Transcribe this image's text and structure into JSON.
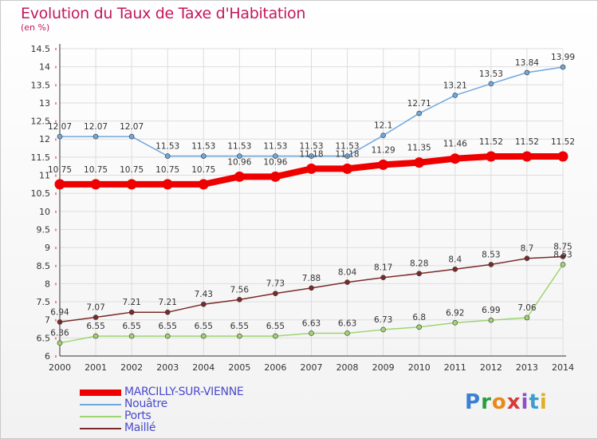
{
  "title": "Evolution du Taux de Taxe d'Habitation",
  "subtitle": "(en %)",
  "logo": "Proxiti",
  "colors": {
    "title": "#c2185b",
    "legend_text": "#4a4acc",
    "grid": "#dddddd"
  },
  "chart_data": {
    "type": "line",
    "title": "Evolution du Taux de Taxe d'Habitation",
    "subtitle": "(en %)",
    "xlabel": "",
    "ylabel": "",
    "ylim": [
      6,
      14.5
    ],
    "yticks": [
      "6",
      "6.5",
      "7",
      "7.5",
      "8",
      "8.5",
      "9",
      "9.5",
      "10",
      "10.5",
      "11",
      "11.5",
      "12",
      "12.5",
      "13",
      "13.5",
      "14",
      "14.5"
    ],
    "x": [
      "2000",
      "2001",
      "2002",
      "2003",
      "2004",
      "2005",
      "2006",
      "2007",
      "2008",
      "2009",
      "2010",
      "2011",
      "2012",
      "2013",
      "2014"
    ],
    "grid": true,
    "legend_position": "bottom-left",
    "series": [
      {
        "name": "MARCILLY-SUR-VIENNE",
        "color": "#ee0000",
        "values": [
          10.75,
          10.75,
          10.75,
          10.75,
          10.75,
          10.96,
          10.96,
          11.18,
          11.18,
          11.29,
          11.35,
          11.46,
          11.52,
          11.52,
          11.52
        ],
        "labels": [
          "10.75",
          "10.75",
          "10.75",
          "10.75",
          "10.75",
          "10.96",
          "10.96",
          "11.18",
          "11.18",
          "11.29",
          "11.35",
          "11.46",
          "11.52",
          "11.52",
          "11.52"
        ]
      },
      {
        "name": "Nouâtre",
        "color": "#6fa8dc",
        "values": [
          12.07,
          12.07,
          12.07,
          11.53,
          11.53,
          11.53,
          11.53,
          11.53,
          11.53,
          12.1,
          12.71,
          13.21,
          13.53,
          13.84,
          13.99
        ],
        "labels": [
          "12.07",
          "12.07",
          "12.07",
          "11.53",
          "11.53",
          "11.53",
          "11.53",
          "11.53",
          "11.53",
          "12.1",
          "12.71",
          "13.21",
          "13.53",
          "13.84",
          "13.99"
        ]
      },
      {
        "name": "Ports",
        "color": "#9fd472",
        "values": [
          6.36,
          6.55,
          6.55,
          6.55,
          6.55,
          6.55,
          6.55,
          6.63,
          6.63,
          6.73,
          6.8,
          6.92,
          6.99,
          7.06,
          8.53
        ],
        "labels": [
          "6.36",
          "6.55",
          "6.55",
          "6.55",
          "6.55",
          "6.55",
          "6.55",
          "6.63",
          "6.63",
          "6.73",
          "6.8",
          "6.92",
          "6.99",
          "7.06",
          "8.53"
        ]
      },
      {
        "name": "Maillé",
        "color": "#7b2a2a",
        "values": [
          6.94,
          7.07,
          7.21,
          7.21,
          7.43,
          7.56,
          7.73,
          7.88,
          8.04,
          8.17,
          8.28,
          8.4,
          8.53,
          8.7,
          8.75
        ],
        "labels": [
          "6.94",
          "7.07",
          "7.21",
          "7.21",
          "7.43",
          "7.56",
          "7.73",
          "7.88",
          "8.04",
          "8.17",
          "8.28",
          "8.4",
          "8.53",
          "8.7",
          "8.75"
        ]
      }
    ]
  }
}
